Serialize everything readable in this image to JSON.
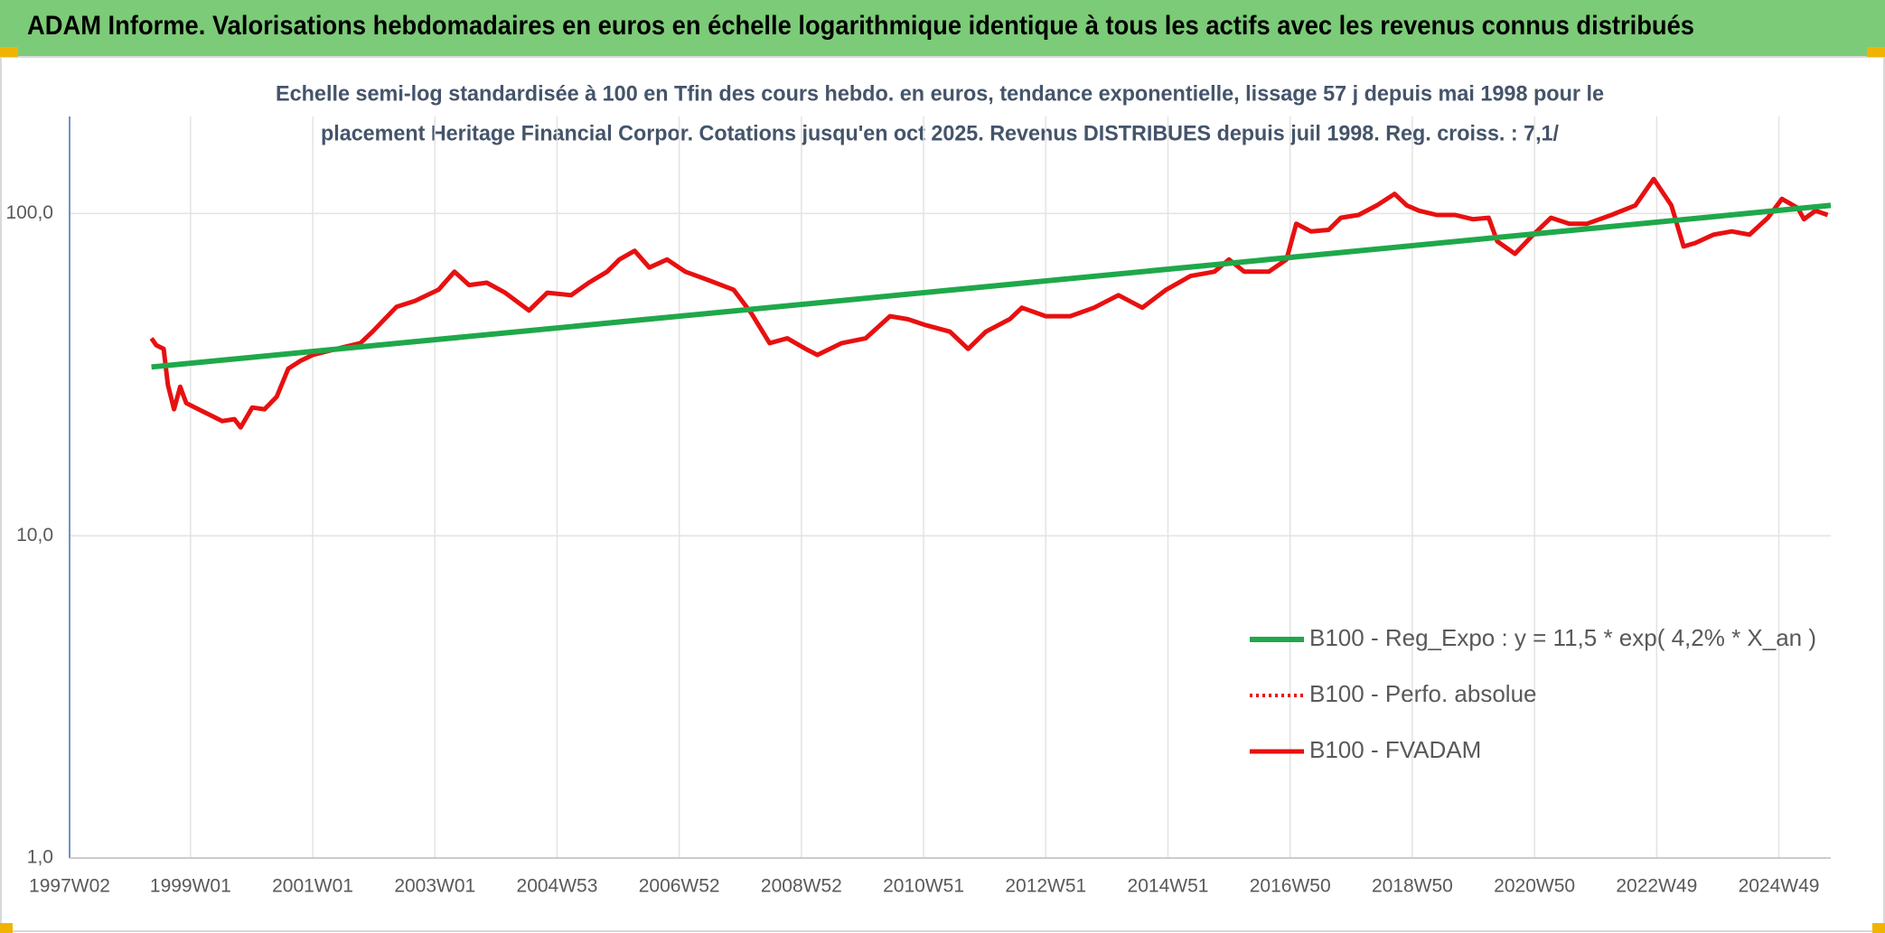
{
  "chart_data": {
    "type": "line",
    "header": "ADAM Informe. Valorisations hebdomadaires en euros en échelle logarithmique identique à tous les actifs avec les revenus connus distribués",
    "subtitle": [
      "Echelle semi-log standardisée à 100 en Tfin des cours hebdo. en euros, tendance exponentielle, lissage 57 j depuis mai 1998 pour le",
      "placement Heritage Financial Corpor. Cotations jusqu'en oct 2025. Revenus DISTRIBUES depuis juil 1998. Reg. croiss. : 7,1/"
    ],
    "log_y": true,
    "grid": true,
    "legend": "right",
    "xlim": [
      1997.02,
      2025.85
    ],
    "ylim": [
      1,
      200
    ],
    "yticks": [
      {
        "value": 1,
        "label": "1,0"
      },
      {
        "value": 10,
        "label": "10,0"
      },
      {
        "value": 100,
        "label": "100,0"
      }
    ],
    "xticks": [
      {
        "value": 1997.02,
        "label": "1997W02"
      },
      {
        "value": 1999.0,
        "label": "1999W01"
      },
      {
        "value": 2001.0,
        "label": "2001W01"
      },
      {
        "value": 2003.0,
        "label": "2003W01"
      },
      {
        "value": 2005.0,
        "label": "2004W53"
      },
      {
        "value": 2007.0,
        "label": "2006W52"
      },
      {
        "value": 2009.0,
        "label": "2008W52"
      },
      {
        "value": 2011.0,
        "label": "2010W51"
      },
      {
        "value": 2013.0,
        "label": "2012W51"
      },
      {
        "value": 2015.0,
        "label": "2014W51"
      },
      {
        "value": 2017.0,
        "label": "2016W50"
      },
      {
        "value": 2019.0,
        "label": "2018W50"
      },
      {
        "value": 2021.0,
        "label": "2020W50"
      },
      {
        "value": 2023.0,
        "label": "2022W49"
      },
      {
        "value": 2025.0,
        "label": "2024W49"
      }
    ],
    "series": [
      {
        "name": "B100 - Reg_Expo : y = 11,5 * exp( 4,2% *  X_an )",
        "color": "#1fa84a",
        "dash": "solid",
        "width": 6,
        "x": [
          1998.36,
          2025.85
        ],
        "values": [
          33.4,
          106
        ]
      },
      {
        "name": "B100 - Perfo. absolue",
        "color": "#e81010",
        "dash": "dotted",
        "width": 4,
        "x": [],
        "values": []
      },
      {
        "name": "B100 - FVADAM",
        "color": "#e81010",
        "dash": "solid",
        "width": 5,
        "x": [
          1998.36,
          1998.44,
          1998.56,
          1998.63,
          1998.73,
          1998.83,
          1998.93,
          1999.13,
          1999.32,
          1999.52,
          1999.72,
          1999.82,
          2000.01,
          2000.21,
          2000.41,
          2000.6,
          2000.8,
          2001.0,
          2001.39,
          2001.78,
          2001.98,
          2002.37,
          2002.67,
          2003.06,
          2003.32,
          2003.56,
          2003.85,
          2004.15,
          2004.54,
          2004.84,
          2005.23,
          2005.52,
          2005.82,
          2006.02,
          2006.27,
          2006.51,
          2006.8,
          2007.1,
          2007.49,
          2007.89,
          2008.18,
          2008.48,
          2008.77,
          2009.07,
          2009.26,
          2009.66,
          2010.05,
          2010.45,
          2010.74,
          2011.04,
          2011.43,
          2011.73,
          2012.02,
          2012.41,
          2012.61,
          2013.0,
          2013.4,
          2013.79,
          2014.19,
          2014.58,
          2014.97,
          2015.37,
          2015.76,
          2016.0,
          2016.25,
          2016.65,
          2016.94,
          2017.1,
          2017.34,
          2017.63,
          2017.83,
          2018.12,
          2018.42,
          2018.71,
          2018.91,
          2019.11,
          2019.4,
          2019.7,
          2019.99,
          2020.25,
          2020.39,
          2020.68,
          2020.98,
          2021.27,
          2021.57,
          2021.86,
          2022.26,
          2022.65,
          2022.95,
          2023.24,
          2023.44,
          2023.63,
          2023.93,
          2024.23,
          2024.52,
          2024.82,
          2025.05,
          2025.31,
          2025.41,
          2025.6,
          2025.8
        ],
        "values": [
          41,
          39,
          38,
          29.4,
          24.7,
          29,
          25.8,
          24.7,
          23.7,
          22.7,
          23,
          21.7,
          25,
          24.7,
          27,
          33,
          34.9,
          36.4,
          38,
          39.6,
          43,
          51.3,
          53.5,
          58,
          66,
          60,
          61,
          56.8,
          50,
          56.8,
          55.8,
          61,
          66,
          72,
          76.6,
          68,
          72,
          66,
          62,
          58,
          49,
          39.6,
          41,
          38,
          36.4,
          39.6,
          41,
          48,
          47,
          45,
          43,
          38,
          43,
          47,
          51,
          48,
          48,
          51,
          55.8,
          51,
          58,
          64,
          66,
          72,
          66,
          66,
          72,
          93,
          88,
          89,
          97,
          99,
          106,
          115,
          106,
          102,
          99,
          99,
          96,
          97,
          82,
          75,
          86,
          97,
          93,
          93,
          99,
          106,
          128,
          106,
          79,
          81,
          86,
          88,
          86,
          97,
          111,
          104,
          96,
          102,
          99
        ]
      }
    ]
  }
}
